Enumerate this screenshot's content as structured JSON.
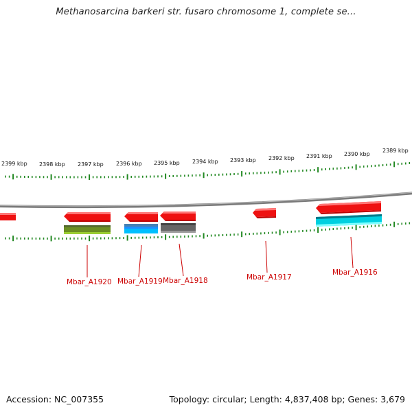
{
  "title": "Methanosarcina barkeri str. fusaro chromosome 1, complete se...",
  "footer": {
    "accession": "Accession: NC_007355",
    "summary": "Topology: circular; Length: 4,837,408 bp; Genes: 3,679"
  },
  "ticks": [
    "2399 kbp",
    "2398 kbp",
    "2397 kbp",
    "2396 kbp",
    "2395 kbp",
    "2394 kbp",
    "2393 kbp",
    "2392 kbp",
    "2391 kbp",
    "2390 kbp",
    "2389 kbp"
  ],
  "genes": [
    "Mbar_A1920",
    "Mbar_A1919",
    "Mbar_A1918",
    "Mbar_A1917",
    "Mbar_A1916"
  ],
  "colors": {
    "gene": "#ee1111",
    "tick": "#228822",
    "label": "#cc0000",
    "backbone": "#888888",
    "feature_olive": "#6b8e23",
    "feature_blue": "#1e90ff",
    "feature_gray": "#666666",
    "feature_cyan": "#00c8d8"
  }
}
